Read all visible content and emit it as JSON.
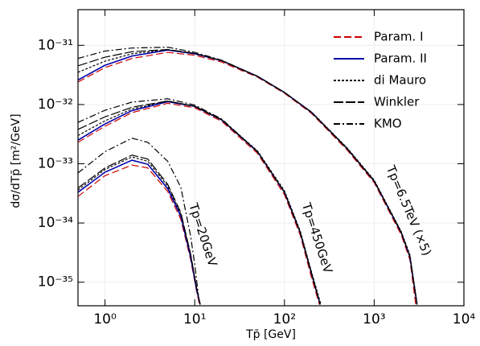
{
  "chart_data": {
    "type": "line",
    "xlabel": "Tp̄   [GeV]",
    "ylabel": "dσ/dTp̄   [m²/GeV]",
    "xscale": "log",
    "yscale": "log",
    "xlim": [
      0.5,
      10000
    ],
    "ylim": [
      4e-36,
      4e-31
    ],
    "xticks": [
      {
        "value": 1,
        "label": "10⁰"
      },
      {
        "value": 10,
        "label": "10¹"
      },
      {
        "value": 100,
        "label": "10²"
      },
      {
        "value": 1000,
        "label": "10³"
      },
      {
        "value": 10000,
        "label": "10⁴"
      }
    ],
    "yticks": [
      {
        "value": 1e-35,
        "label": "10⁻³⁵"
      },
      {
        "value": 1e-34,
        "label": "10⁻³⁴"
      },
      {
        "value": 1e-33,
        "label": "10⁻³³"
      },
      {
        "value": 1e-32,
        "label": "10⁻³²"
      },
      {
        "value": 1e-31,
        "label": "10⁻³¹"
      }
    ],
    "grid": true,
    "legend": "upper right",
    "annotations": [
      "Tp=20GeV",
      "Tp=450GeV",
      "Tp=6.5TeV (×5)"
    ],
    "series": [
      {
        "name": "Param. I",
        "color": "#cc0000",
        "linestyle": "dashed",
        "x": [
          0.5,
          1,
          2,
          5,
          10,
          20,
          50,
          100,
          200,
          500,
          1000,
          2000,
          2500,
          2900
        ],
        "values": [
          2.4e-32,
          4.2e-32,
          6e-32,
          7.6e-32,
          6.8e-32,
          5.2e-32,
          2.9e-32,
          1.55e-32,
          7.1e-33,
          1.7e-33,
          4.8e-34,
          6.3e-35,
          2.4e-35,
          4.2e-36
        ]
      },
      {
        "name": "Param. II",
        "color": "#0000aa",
        "linestyle": "solid",
        "x": [
          0.5,
          1,
          2,
          5,
          10,
          20,
          50,
          100,
          200,
          500,
          1000,
          2000,
          2500,
          3000
        ],
        "values": [
          2.6e-32,
          4.6e-32,
          6.6e-32,
          8.3e-32,
          7.2e-32,
          5.5e-32,
          3e-32,
          1.6e-32,
          7.4e-33,
          1.8e-33,
          5.1e-34,
          6.9e-35,
          2.7e-35,
          4.2e-36
        ]
      },
      {
        "name": "di Mauro",
        "color": "#000000",
        "linestyle": "dotted",
        "x": [
          0.5,
          1,
          2,
          5,
          10,
          20,
          50,
          100,
          200,
          500,
          1000,
          2000,
          2500,
          3000
        ],
        "values": [
          3.5e-32,
          5.4e-32,
          7.2e-32,
          8.4e-32,
          7.3e-32,
          5.5e-32,
          3e-32,
          1.6e-32,
          7.5e-33,
          1.85e-33,
          5.3e-34,
          7.2e-35,
          2.9e-35,
          4.5e-36
        ]
      },
      {
        "name": "Winkler",
        "color": "#000000",
        "linestyle": "longdash",
        "x": [
          0.5,
          1,
          2,
          5,
          10,
          20,
          50,
          100,
          200,
          500,
          1000,
          2000,
          2500,
          3000
        ],
        "values": [
          4.5e-32,
          6.3e-32,
          7.8e-32,
          8.5e-32,
          7.3e-32,
          5.5e-32,
          3e-32,
          1.6e-32,
          7.4e-33,
          1.8e-33,
          5.1e-34,
          6.9e-35,
          2.7e-35,
          4.2e-36
        ]
      },
      {
        "name": "KMO",
        "color": "#000000",
        "linestyle": "dashdot",
        "x": [
          0.5,
          1,
          2,
          5,
          10,
          20,
          50,
          100,
          200,
          500,
          1000,
          2000,
          2500,
          3000
        ],
        "values": [
          6e-32,
          8e-32,
          9e-32,
          9.3e-32,
          7.6e-32,
          5.6e-32,
          3e-32,
          1.6e-32,
          7.4e-33,
          1.8e-33,
          5.1e-34,
          6.9e-35,
          2.7e-35,
          4.2e-36
        ]
      },
      {
        "name": "Param. I",
        "color": "#cc0000",
        "linestyle": "dashed",
        "x": [
          0.5,
          1,
          2,
          5,
          10,
          20,
          50,
          100,
          150,
          200,
          245
        ],
        "values": [
          2.3e-33,
          4.3e-33,
          7.3e-33,
          1.05e-32,
          8.8e-33,
          5.2e-33,
          1.5e-33,
          3e-34,
          6.2e-35,
          1.2e-35,
          4.2e-36
        ]
      },
      {
        "name": "Param. II",
        "color": "#0000aa",
        "linestyle": "solid",
        "x": [
          0.5,
          1,
          2,
          5,
          10,
          20,
          50,
          100,
          150,
          200,
          250
        ],
        "values": [
          2.5e-33,
          4.7e-33,
          7.9e-33,
          1.12e-32,
          9.3e-33,
          5.5e-33,
          1.6e-33,
          3.3e-34,
          6.9e-35,
          1.4e-35,
          4.2e-36
        ]
      },
      {
        "name": "di Mauro",
        "color": "#000000",
        "linestyle": "dotted",
        "x": [
          0.5,
          1,
          2,
          5,
          10,
          20,
          50,
          100,
          150,
          200,
          255
        ],
        "values": [
          3e-33,
          5.3e-33,
          8.4e-33,
          1.14e-32,
          9.4e-33,
          5.6e-33,
          1.65e-33,
          3.5e-34,
          7.3e-35,
          1.5e-35,
          4.2e-36
        ]
      },
      {
        "name": "Winkler",
        "color": "#000000",
        "linestyle": "longdash",
        "x": [
          0.5,
          1,
          2,
          5,
          10,
          20,
          50,
          100,
          150,
          200,
          250
        ],
        "values": [
          3.8e-33,
          6.2e-33,
          9e-33,
          1.15e-32,
          9.3e-33,
          5.5e-33,
          1.6e-33,
          3.3e-34,
          6.9e-35,
          1.4e-35,
          4.2e-36
        ]
      },
      {
        "name": "KMO",
        "color": "#000000",
        "linestyle": "dashdot",
        "x": [
          0.5,
          1,
          2,
          5,
          10,
          20,
          50,
          100,
          150,
          200,
          250
        ],
        "values": [
          5e-33,
          8e-33,
          1.1e-32,
          1.25e-32,
          9.8e-33,
          5.7e-33,
          1.6e-33,
          3.3e-34,
          6.9e-35,
          1.4e-35,
          4.2e-36
        ]
      },
      {
        "name": "Param. I",
        "color": "#cc0000",
        "linestyle": "dashed",
        "x": [
          0.5,
          1,
          2,
          3,
          5,
          7,
          9,
          10.5,
          11.3
        ],
        "values": [
          2.8e-34,
          6.3e-34,
          9.5e-34,
          8.5e-34,
          3.4e-34,
          1.15e-34,
          2.4e-35,
          7e-36,
          4.2e-36
        ]
      },
      {
        "name": "Param. II",
        "color": "#0000aa",
        "linestyle": "solid",
        "x": [
          0.5,
          1,
          2,
          3,
          5,
          7,
          9,
          10.5,
          11.5
        ],
        "values": [
          3.3e-34,
          7.2e-34,
          1.15e-33,
          9.8e-34,
          3.8e-34,
          1.3e-34,
          2.7e-35,
          7.5e-36,
          4.2e-36
        ]
      },
      {
        "name": "di Mauro",
        "color": "#000000",
        "linestyle": "dotted",
        "x": [
          0.5,
          1,
          2,
          3,
          5,
          7,
          9,
          10.5,
          11.5
        ],
        "values": [
          3.6e-34,
          8e-34,
          1.3e-33,
          1.1e-33,
          4.2e-34,
          1.4e-34,
          2.9e-35,
          8e-36,
          4.2e-36
        ]
      },
      {
        "name": "Winkler",
        "color": "#000000",
        "linestyle": "longdash",
        "x": [
          0.5,
          1,
          2,
          3,
          5,
          7,
          9,
          10.5,
          11.5
        ],
        "values": [
          3.9e-34,
          8.5e-34,
          1.4e-33,
          1.2e-33,
          4.5e-34,
          1.5e-34,
          3e-35,
          8e-36,
          4.2e-36
        ]
      },
      {
        "name": "KMO",
        "color": "#000000",
        "linestyle": "dashdot",
        "x": [
          0.5,
          1,
          2,
          3,
          5,
          7,
          9,
          10,
          11
        ],
        "values": [
          7e-34,
          1.6e-33,
          2.7e-33,
          2.3e-33,
          1.1e-33,
          4e-34,
          6e-35,
          2e-35,
          6e-36
        ]
      }
    ]
  }
}
